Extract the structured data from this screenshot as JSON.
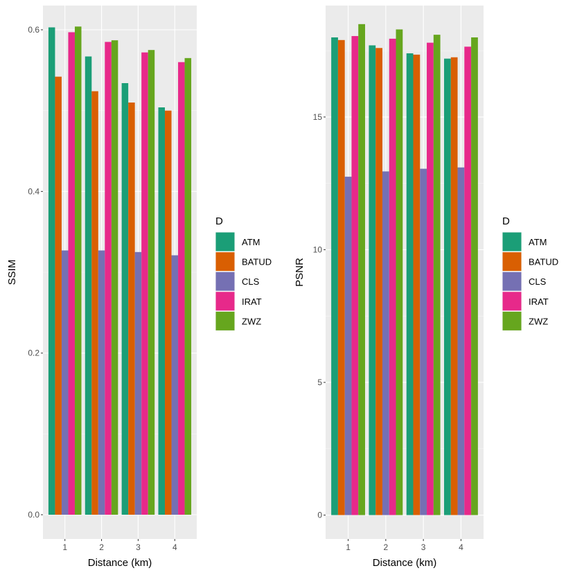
{
  "colors": {
    "panel_background": "#EBEBEB",
    "grid_major": "#FFFFFF",
    "tick_text": "#4D4D4D",
    "series": {
      "ATM": "#1B9E77",
      "BATUD": "#D95F02",
      "CLS": "#7570B3",
      "IRAT": "#E7298A",
      "ZWZ": "#66A61E"
    }
  },
  "chart_data": [
    {
      "type": "bar",
      "title": "",
      "xlabel": "Distance (km)",
      "ylabel": "SSIM",
      "ylim": [
        -0.03,
        0.63
      ],
      "yticks": [
        0.0,
        0.2,
        0.4,
        0.6
      ],
      "ytick_labels": [
        "0.0",
        "0.2",
        "0.4",
        "0.6"
      ],
      "categories": [
        "1",
        "2",
        "3",
        "4"
      ],
      "legend": {
        "title": "D",
        "position": "right"
      },
      "grid": true,
      "series": [
        {
          "name": "ATM",
          "values": [
            0.603,
            0.567,
            0.534,
            0.504
          ]
        },
        {
          "name": "BATUD",
          "values": [
            0.542,
            0.524,
            0.51,
            0.5
          ]
        },
        {
          "name": "CLS",
          "values": [
            0.327,
            0.327,
            0.325,
            0.321
          ]
        },
        {
          "name": "IRAT",
          "values": [
            0.597,
            0.585,
            0.572,
            0.56
          ]
        },
        {
          "name": "ZWZ",
          "values": [
            0.604,
            0.587,
            0.575,
            0.565
          ]
        }
      ]
    },
    {
      "type": "bar",
      "title": "",
      "xlabel": "Distance (km)",
      "ylabel": "PSNR",
      "ylim": [
        -0.9,
        19.2
      ],
      "yticks": [
        0,
        5,
        10,
        15
      ],
      "ytick_labels": [
        "0",
        "5",
        "10",
        "15"
      ],
      "categories": [
        "1",
        "2",
        "3",
        "4"
      ],
      "legend": {
        "title": "D",
        "position": "right"
      },
      "grid": true,
      "series": [
        {
          "name": "ATM",
          "values": [
            18.0,
            17.7,
            17.4,
            17.2
          ]
        },
        {
          "name": "BATUD",
          "values": [
            17.9,
            17.6,
            17.35,
            17.25
          ]
        },
        {
          "name": "CLS",
          "values": [
            12.75,
            12.95,
            13.05,
            13.1
          ]
        },
        {
          "name": "IRAT",
          "values": [
            18.05,
            17.95,
            17.8,
            17.65
          ]
        },
        {
          "name": "ZWZ",
          "values": [
            18.5,
            18.3,
            18.1,
            18.0
          ]
        }
      ]
    }
  ]
}
